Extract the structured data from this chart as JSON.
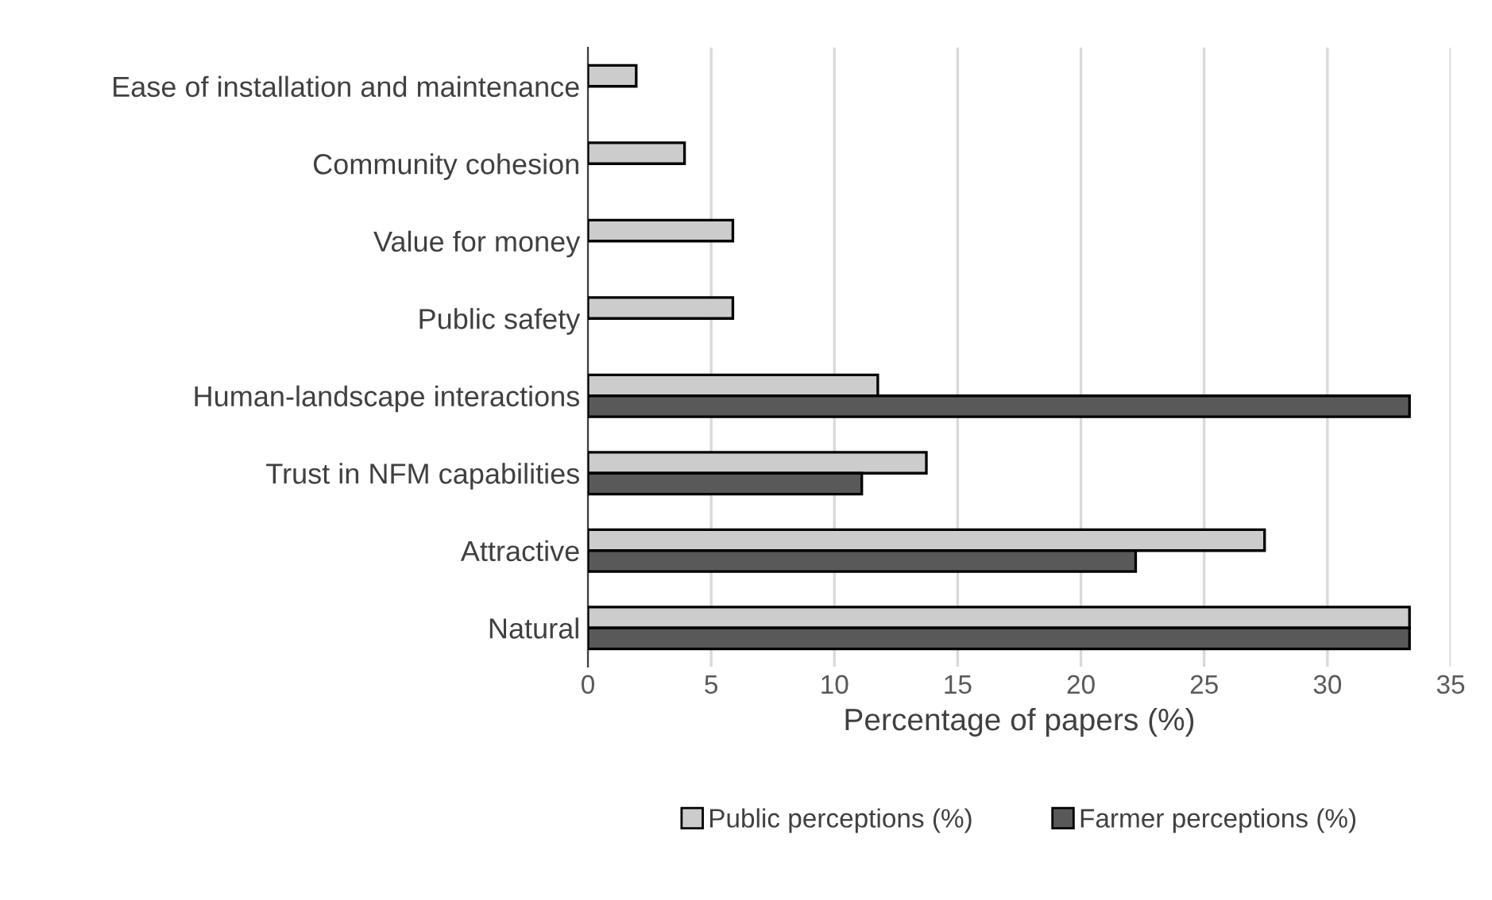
{
  "chart_data": {
    "type": "bar",
    "orientation": "horizontal",
    "categories": [
      "Ease of installation and maintenance",
      "Community cohesion",
      "Value for money",
      "Public safety",
      "Human-landscape interactions",
      "Trust in NFM capabilities",
      "Attractive",
      "Natural"
    ],
    "series": [
      {
        "name": "Public perceptions (%)",
        "color": "#cccccc",
        "values": [
          1.96,
          3.92,
          5.88,
          5.88,
          11.76,
          13.73,
          27.45,
          33.33
        ]
      },
      {
        "name": "Farmer perceptions (%)",
        "color": "#595959",
        "values": [
          null,
          null,
          null,
          null,
          33.33,
          11.11,
          22.22,
          33.33
        ]
      }
    ],
    "xlabel": "Percentage of papers (%)",
    "xlim": [
      0,
      35
    ],
    "xticks": [
      0,
      5,
      10,
      15,
      20,
      25,
      30,
      35
    ],
    "grid": "x",
    "legend": "bottom"
  }
}
